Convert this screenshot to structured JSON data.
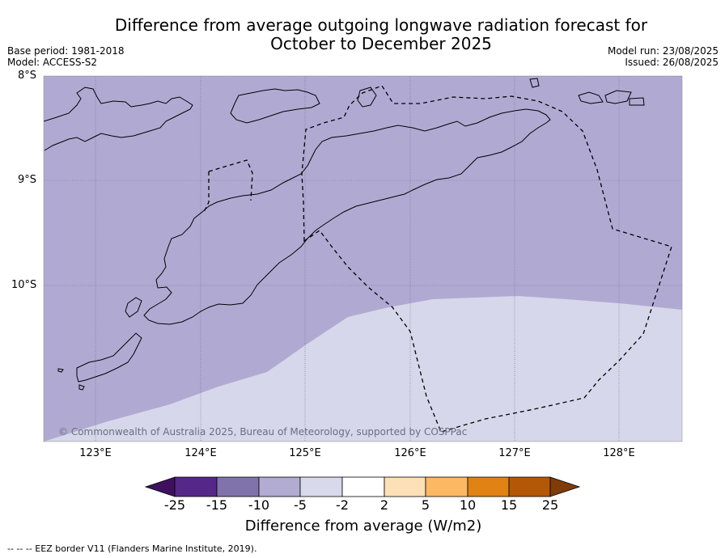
{
  "title_line1": "Difference from average outgoing longwave radiation forecast for",
  "title_line2": "October to December 2025",
  "base_period": "Base period: 1981-2018",
  "model": "Model: ACCESS-S2",
  "model_run": "Model run: 23/08/2025",
  "issued": "Issued: 26/08/2025",
  "latitudes": [
    "8°S",
    "9°S",
    "10°S"
  ],
  "longitudes": [
    "123°E",
    "124°E",
    "125°E",
    "126°E",
    "127°E",
    "128°E"
  ],
  "credit": "© Commonwealth of Australia 2025, Bureau of Meteorology, supported by COSPPac",
  "colorbar": {
    "ticks": [
      "-25",
      "-15",
      "-10",
      "-5",
      "-2",
      "2",
      "5",
      "10",
      "15",
      "25"
    ],
    "colors": [
      "#3f1060",
      "#542788",
      "#8073ac",
      "#b2abd2",
      "#d8daeb",
      "#ffffff",
      "#fee0b6",
      "#fdb863",
      "#e08214",
      "#b35806",
      "#7f3b08"
    ],
    "label": "Difference from average (W/m2)"
  },
  "footnote": "--  --  -- EEZ border V11 (Flanders Marine Institute, 2019).",
  "map_colors": {
    "band_minus10_minus5": "#b0aad3",
    "band_minus5_minus2": "#d6d7ea"
  }
}
